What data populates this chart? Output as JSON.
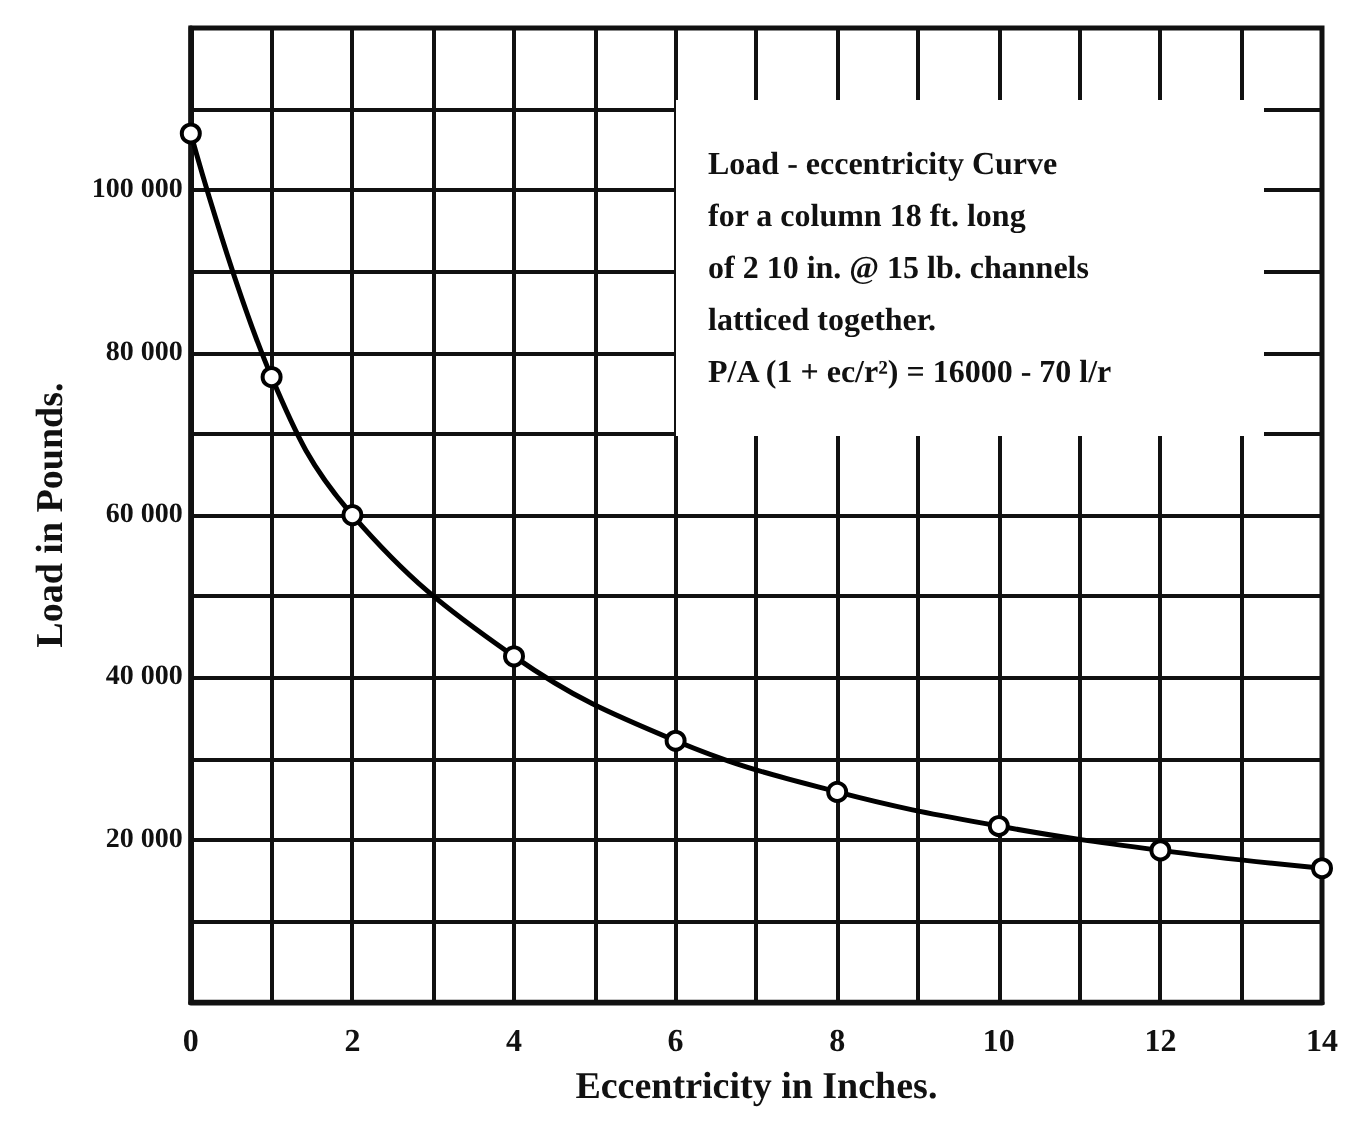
{
  "chart_data": {
    "type": "line",
    "xlabel": "Eccentricity in Inches.",
    "ylabel": "Load in Pounds.",
    "annotations": [
      "Load - eccentricity Curve\nfor a column 18 ft. long\nof 2  10 in. @ 15 lb. channels\nlatticed together.\nP/A (1 + ec/r²) = 16000 - 70 l/r"
    ],
    "x": [
      0,
      1,
      2,
      4,
      6,
      8,
      10,
      12,
      14
    ],
    "series": [
      {
        "color": "#000000",
        "values": [
          107000,
          77000,
          60000,
          42600,
          32200,
          25900,
          21700,
          18700,
          16500
        ]
      }
    ],
    "xlim": [
      0,
      14
    ],
    "xticks": [
      0,
      {
        "value": 1,
        "label": null
      },
      2,
      {
        "value": 3,
        "label": null
      },
      4,
      {
        "value": 5,
        "label": null
      },
      6,
      {
        "value": 7,
        "label": null
      },
      8,
      {
        "value": 9,
        "label": null
      },
      10,
      {
        "value": 11,
        "label": null
      },
      12,
      {
        "value": 13,
        "label": null
      },
      14
    ],
    "ylim": [
      0,
      120000
    ],
    "yticks": [
      {
        "value": 0,
        "label": null
      },
      {
        "value": 10000,
        "label": null
      },
      {
        "value": 20000,
        "label": "20 000"
      },
      {
        "value": 30000,
        "label": null
      },
      {
        "value": 40000,
        "label": "40 000"
      },
      {
        "value": 50000,
        "label": null
      },
      {
        "value": 60000,
        "label": "60 000"
      },
      {
        "value": 70000,
        "label": null
      },
      {
        "value": 80000,
        "label": "80 000"
      },
      {
        "value": 90000,
        "label": null
      },
      {
        "value": 100000,
        "label": "100 000"
      },
      {
        "value": 110000,
        "label": null
      },
      {
        "value": 120000,
        "label": null
      }
    ],
    "grid": true,
    "marker": "circle",
    "line_style": "solid"
  }
}
